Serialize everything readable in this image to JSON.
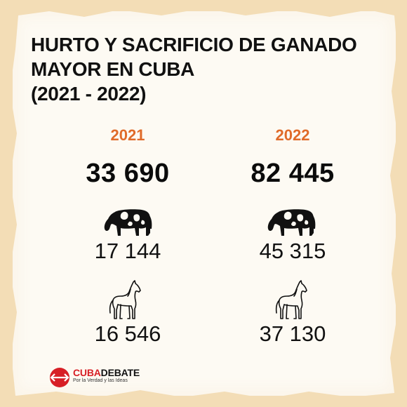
{
  "title": {
    "line1": "HURTO Y SACRIFICIO DE GANADO",
    "line2": "MAYOR EN CUBA",
    "line3": "(2021 - 2022)"
  },
  "colors": {
    "accent": "#e06b2a",
    "text": "#111111",
    "paper": "#fdfaf3",
    "border": "#f3ddb6",
    "brand_red": "#d71f26"
  },
  "columns": [
    {
      "year": "2021",
      "total": "33 690",
      "cattle": "17 144",
      "horses": "16 546"
    },
    {
      "year": "2022",
      "total": "82 445",
      "cattle": "45 315",
      "horses": "37 130"
    }
  ],
  "icons": {
    "cattle": "cow-icon",
    "horses": "horse-icon"
  },
  "brand": {
    "name_red": "CUBA",
    "name_black": "DEBATE",
    "slogan": "Por la Verdad y las Ideas"
  }
}
